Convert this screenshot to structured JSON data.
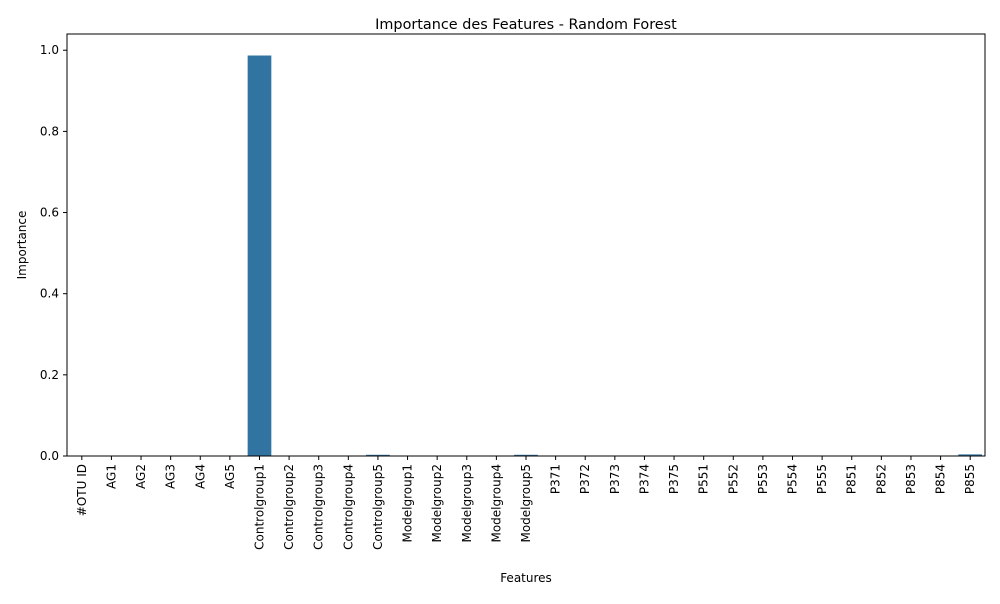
{
  "chart_data": {
    "type": "bar",
    "title": "Importance des Features - Random Forest",
    "xlabel": "Features",
    "ylabel": "Importance",
    "ylim": [
      0,
      1.04
    ],
    "yticks": [
      0.0,
      0.2,
      0.4,
      0.6,
      0.8,
      1.0
    ],
    "ytick_labels": [
      "0.0",
      "0.2",
      "0.4",
      "0.6",
      "0.8",
      "1.0"
    ],
    "grid": false,
    "legend": "none",
    "bar_color": "#3274a1",
    "categories": [
      "#OTU ID",
      "AG1",
      "AG2",
      "AG3",
      "AG4",
      "AG5",
      "Controlgroup1",
      "Controlgroup2",
      "Controlgroup3",
      "Controlgroup4",
      "Controlgroup5",
      "Modelgroup1",
      "Modelgroup2",
      "Modelgroup3",
      "Modelgroup4",
      "Modelgroup5",
      "P371",
      "P372",
      "P373",
      "P374",
      "P375",
      "P551",
      "P552",
      "P553",
      "P554",
      "P555",
      "P851",
      "P852",
      "P853",
      "P854",
      "P855"
    ],
    "values": [
      0,
      0,
      0,
      0,
      0,
      0,
      0.987,
      0,
      0,
      0,
      0.003,
      0,
      0,
      0,
      0,
      0.003,
      0,
      0,
      0,
      0,
      0,
      0,
      0,
      0,
      0,
      0,
      0,
      0,
      0,
      0,
      0.004
    ]
  }
}
